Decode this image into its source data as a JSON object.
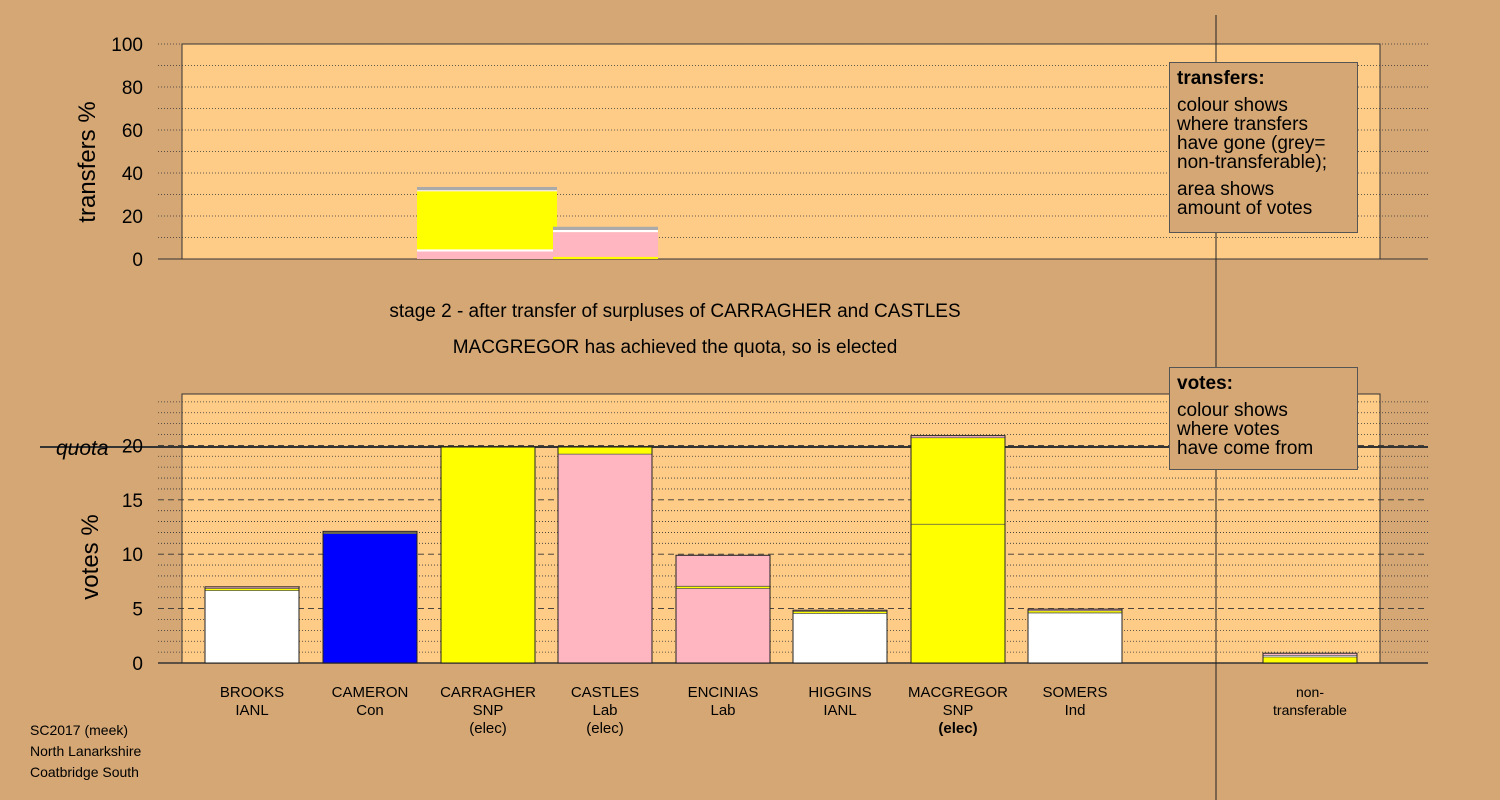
{
  "chart_data": [
    {
      "type": "bar",
      "name": "transfers",
      "ylabel": "transfers %",
      "ylim": [
        0,
        100
      ],
      "yticks": [
        0,
        20,
        40,
        60,
        80,
        100
      ],
      "grid": "dotted",
      "columns": [
        {
          "source": "CARRAGHER",
          "segments": [
            {
              "color": "#ffb6c1",
              "value": 3.5
            },
            {
              "color": "#ffffff",
              "value": 1.0
            },
            {
              "color": "#ffff00",
              "value": 27.0
            },
            {
              "color": "#ffffff",
              "value": 0.5
            },
            {
              "color": "#aaaaaa",
              "value": 1.5
            }
          ]
        },
        {
          "source": "CASTLES",
          "segments": [
            {
              "color": "#ffff00",
              "value": 1.0
            },
            {
              "color": "#ffb6c1",
              "value": 11.5
            },
            {
              "color": "#ffffff",
              "value": 1.0
            },
            {
              "color": "#aaaaaa",
              "value": 1.5
            }
          ]
        }
      ]
    },
    {
      "type": "bar",
      "name": "votes",
      "ylabel": "votes %",
      "ylim": [
        0,
        25
      ],
      "yticks": [
        0,
        5,
        10,
        15,
        20
      ],
      "quota": 19.85,
      "quota_label": "quota",
      "grid": "dashed every 5, dotted every 1",
      "categories": [
        "BROOKS",
        "CAMERON",
        "CARRAGHER",
        "CASTLES",
        "ENCINIAS",
        "HIGGINS",
        "MACGREGOR",
        "SOMERS",
        "non-transferable"
      ],
      "bars": [
        {
          "name": "BROOKS",
          "party": "IANL",
          "segments": [
            {
              "color": "#ffffff",
              "value": 6.65
            },
            {
              "color": "#ffff00",
              "value": 0.2
            },
            {
              "color": "#ffb6c1",
              "value": 0.15
            }
          ]
        },
        {
          "name": "CAMERON",
          "party": "Con",
          "segments": [
            {
              "color": "#0000ff",
              "value": 11.9
            },
            {
              "color": "#ffff00",
              "value": 0.1
            },
            {
              "color": "#ffb6c1",
              "value": 0.1
            }
          ]
        },
        {
          "name": "CARRAGHER",
          "party": "SNP",
          "status": "(elec)",
          "segments": [
            {
              "color": "#ffff00",
              "value": 19.85
            }
          ]
        },
        {
          "name": "CASTLES",
          "party": "Lab",
          "status": "(elec)",
          "segments": [
            {
              "color": "#ffb6c1",
              "value": 19.2
            },
            {
              "color": "#ffff00",
              "value": 0.65
            }
          ]
        },
        {
          "name": "ENCINIAS",
          "party": "Lab",
          "segments": [
            {
              "color": "#ffb6c1",
              "value": 6.85
            },
            {
              "color": "#ffff00",
              "value": 0.2
            },
            {
              "color": "#ffb6c1",
              "value": 2.85
            }
          ]
        },
        {
          "name": "HIGGINS",
          "party": "IANL",
          "segments": [
            {
              "color": "#ffffff",
              "value": 4.55
            },
            {
              "color": "#ffff00",
              "value": 0.2
            },
            {
              "color": "#ffb6c1",
              "value": 0.1
            }
          ]
        },
        {
          "name": "MACGREGOR",
          "party": "SNP",
          "status": "(elec)",
          "segments": [
            {
              "color": "#ffff00",
              "value": 12.75
            },
            {
              "color": "#ffff00",
              "value": 7.95
            },
            {
              "color": "#ffb6c1",
              "value": 0.2
            }
          ]
        },
        {
          "name": "SOMERS",
          "party": "Ind",
          "segments": [
            {
              "color": "#ffffff",
              "value": 4.6
            },
            {
              "color": "#ffff00",
              "value": 0.2
            },
            {
              "color": "#ffb6c1",
              "value": 0.15
            }
          ]
        },
        {
          "name": "non-transferable",
          "party": "",
          "segments": [
            {
              "color": "#ffff00",
              "value": 0.55
            },
            {
              "color": "#ffffff",
              "value": 0.15
            },
            {
              "color": "#ffb6c1",
              "value": 0.2
            }
          ]
        }
      ],
      "category_labels": [
        [
          "BROOKS",
          "IANL"
        ],
        [
          "CAMERON",
          "Con"
        ],
        [
          "CARRAGHER",
          "SNP",
          "(elec)"
        ],
        [
          "CASTLES",
          "Lab",
          "(elec)"
        ],
        [
          "ENCINIAS",
          "Lab"
        ],
        [
          "HIGGINS",
          "IANL"
        ],
        [
          "MACGREGOR",
          "SNP",
          "(elec)"
        ],
        [
          "SOMERS",
          "Ind"
        ],
        [
          "non-",
          "transferable"
        ]
      ]
    }
  ],
  "captions": {
    "stage": "stage 2 - after transfer of surpluses of CARRAGHER and CASTLES",
    "elected": "MACGREGOR has achieved the quota, so is elected"
  },
  "legend_transfers": {
    "title": "transfers:",
    "lines1": [
      "colour shows",
      "where transfers",
      "have gone (grey=",
      "non-transferable);"
    ],
    "lines2": [
      "area shows",
      "amount of votes"
    ]
  },
  "legend_votes": {
    "title": "votes:",
    "lines": [
      "colour shows",
      "where votes",
      "have come from"
    ]
  },
  "footer": [
    "SC2017 (meek)",
    "North Lanarkshire",
    "Coatbridge South"
  ],
  "colors": {
    "background": "#d4a775",
    "plot": "#ffcc88",
    "snp": "#ffff00",
    "lab": "#ffb6c1",
    "con": "#0000ff",
    "ind": "#ffffff",
    "nontransferable": "#aaaaaa"
  }
}
